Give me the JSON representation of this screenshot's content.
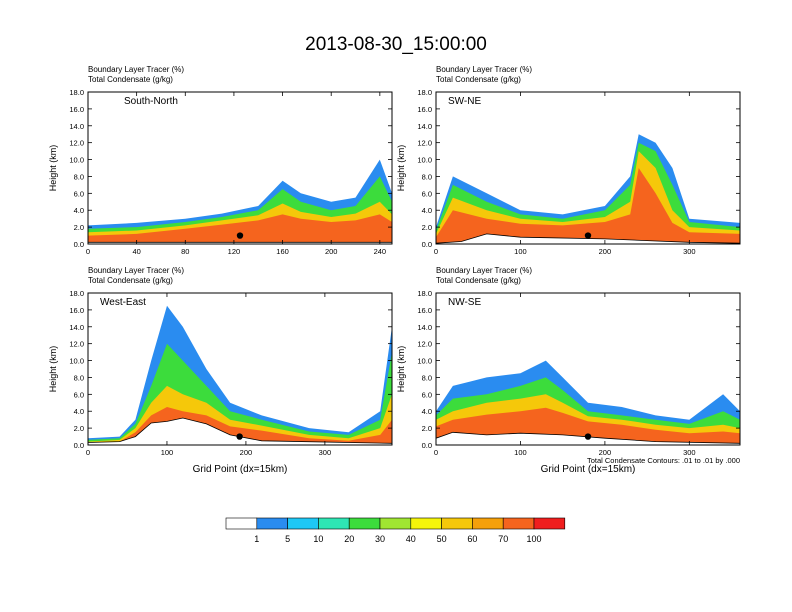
{
  "figure": {
    "title": "2013-08-30_15:00:00",
    "contour_note": "Total Condensate Contours: .01 to .01 by .000"
  },
  "colors": {
    "levels": [
      "#ffffff",
      "#2a8cf0",
      "#1ec8f5",
      "#2ee6b4",
      "#3cdc3c",
      "#a0e632",
      "#f5f50a",
      "#f5c80a",
      "#f5a00a",
      "#f5641e",
      "#f01e1e"
    ],
    "contour": "#000000",
    "marker": "#000000"
  },
  "colorbar": {
    "labels": [
      "1",
      "5",
      "10",
      "20",
      "30",
      "40",
      "50",
      "60",
      "70",
      "100"
    ]
  },
  "chart_data": [
    {
      "type": "heatmap",
      "panel": "South-North",
      "header_lines": [
        "Boundary Layer Tracer   (%)",
        "Total Condensate   (g/kg)"
      ],
      "ylabel": "Height (km)",
      "xlabel": "",
      "xlim": [
        0,
        250
      ],
      "ylim": [
        0,
        18
      ],
      "xticks": [
        "0",
        "40",
        "80",
        "120",
        "160",
        "200",
        "240"
      ],
      "yticks": [
        "0.0",
        "2.0",
        "4.0",
        "6.0",
        "8.0",
        "10.0",
        "12.0",
        "14.0",
        "16.0",
        "18.0"
      ],
      "series": [
        {
          "level_pct": 1,
          "top_km": [
            [
              0,
              2.2
            ],
            [
              40,
              2.5
            ],
            [
              80,
              3.0
            ],
            [
              110,
              3.6
            ],
            [
              140,
              4.5
            ],
            [
              160,
              7.5
            ],
            [
              175,
              6.0
            ],
            [
              200,
              5.0
            ],
            [
              220,
              5.5
            ],
            [
              240,
              10.0
            ],
            [
              250,
              6.0
            ]
          ]
        },
        {
          "level_pct": 20,
          "top_km": [
            [
              0,
              1.8
            ],
            [
              40,
              2.0
            ],
            [
              80,
              2.6
            ],
            [
              110,
              3.2
            ],
            [
              140,
              4.0
            ],
            [
              160,
              6.5
            ],
            [
              175,
              5.0
            ],
            [
              200,
              4.0
            ],
            [
              220,
              4.5
            ],
            [
              240,
              8.0
            ],
            [
              250,
              5.0
            ]
          ]
        },
        {
          "level_pct": 50,
          "top_km": [
            [
              0,
              1.4
            ],
            [
              40,
              1.6
            ],
            [
              80,
              2.2
            ],
            [
              110,
              2.8
            ],
            [
              140,
              3.4
            ],
            [
              160,
              4.8
            ],
            [
              175,
              3.8
            ],
            [
              200,
              3.2
            ],
            [
              220,
              3.6
            ],
            [
              240,
              5.0
            ],
            [
              250,
              3.5
            ]
          ]
        },
        {
          "level_pct": 70,
          "top_km": [
            [
              0,
              1.0
            ],
            [
              40,
              1.2
            ],
            [
              80,
              1.8
            ],
            [
              110,
              2.3
            ],
            [
              140,
              2.8
            ],
            [
              160,
              3.5
            ],
            [
              175,
              3.0
            ],
            [
              200,
              2.6
            ],
            [
              220,
              2.8
            ],
            [
              240,
              3.5
            ],
            [
              250,
              2.6
            ]
          ]
        }
      ],
      "terrain_km": [
        [
          0,
          0.2
        ],
        [
          250,
          0.2
        ]
      ],
      "marker": [
        125,
        1.0
      ]
    },
    {
      "type": "heatmap",
      "panel": "SW-NE",
      "header_lines": [
        "Boundary Layer Tracer   (%)",
        "Total Condensate   (g/kg)"
      ],
      "ylabel": "Height (km)",
      "xlabel": "",
      "xlim": [
        0,
        360
      ],
      "ylim": [
        0,
        18
      ],
      "xticks": [
        "0",
        "100",
        "200",
        "300"
      ],
      "yticks": [
        "0.0",
        "2.0",
        "4.0",
        "6.0",
        "8.0",
        "10.0",
        "12.0",
        "14.0",
        "16.0",
        "18.0"
      ],
      "series": [
        {
          "level_pct": 1,
          "top_km": [
            [
              0,
              2.0
            ],
            [
              20,
              8.0
            ],
            [
              60,
              6.0
            ],
            [
              100,
              4.0
            ],
            [
              150,
              3.5
            ],
            [
              200,
              4.5
            ],
            [
              230,
              8.0
            ],
            [
              240,
              13.0
            ],
            [
              260,
              12.0
            ],
            [
              280,
              9.0
            ],
            [
              300,
              3.0
            ],
            [
              360,
              2.5
            ]
          ]
        },
        {
          "level_pct": 20,
          "top_km": [
            [
              0,
              1.6
            ],
            [
              20,
              7.0
            ],
            [
              60,
              5.0
            ],
            [
              100,
              3.5
            ],
            [
              150,
              3.0
            ],
            [
              200,
              4.0
            ],
            [
              230,
              7.0
            ],
            [
              240,
              12.0
            ],
            [
              260,
              11.0
            ],
            [
              280,
              7.0
            ],
            [
              300,
              2.6
            ],
            [
              360,
              2.0
            ]
          ]
        },
        {
          "level_pct": 50,
          "top_km": [
            [
              0,
              1.2
            ],
            [
              20,
              5.5
            ],
            [
              60,
              4.0
            ],
            [
              100,
              3.0
            ],
            [
              150,
              2.6
            ],
            [
              200,
              3.2
            ],
            [
              230,
              5.0
            ],
            [
              240,
              11.0
            ],
            [
              260,
              9.0
            ],
            [
              280,
              4.0
            ],
            [
              300,
              2.0
            ],
            [
              360,
              1.6
            ]
          ]
        },
        {
          "level_pct": 70,
          "top_km": [
            [
              0,
              0.8
            ],
            [
              20,
              4.0
            ],
            [
              60,
              3.0
            ],
            [
              100,
              2.4
            ],
            [
              150,
              2.2
            ],
            [
              200,
              2.6
            ],
            [
              230,
              3.5
            ],
            [
              240,
              9.0
            ],
            [
              260,
              6.0
            ],
            [
              280,
              2.5
            ],
            [
              300,
              1.4
            ],
            [
              360,
              1.2
            ]
          ]
        }
      ],
      "terrain_km": [
        [
          0,
          0.1
        ],
        [
          30,
          0.3
        ],
        [
          60,
          1.2
        ],
        [
          100,
          0.8
        ],
        [
          200,
          0.6
        ],
        [
          250,
          0.4
        ],
        [
          300,
          0.2
        ],
        [
          360,
          0.1
        ]
      ],
      "marker": [
        180,
        1.0
      ]
    },
    {
      "type": "heatmap",
      "panel": "West-East",
      "header_lines": [
        "Boundary Layer Tracer   (%)",
        "Total Condensate   (g/kg)"
      ],
      "ylabel": "Height (km)",
      "xlabel": "Grid Point (dx=15km)",
      "xlim": [
        0,
        385
      ],
      "ylim": [
        0,
        18
      ],
      "xticks": [
        "0",
        "100",
        "200",
        "300"
      ],
      "yticks": [
        "0.0",
        "2.0",
        "4.0",
        "6.0",
        "8.0",
        "10.0",
        "12.0",
        "14.0",
        "16.0",
        "18.0"
      ],
      "series": [
        {
          "level_pct": 1,
          "top_km": [
            [
              0,
              0.8
            ],
            [
              40,
              1.0
            ],
            [
              60,
              3.0
            ],
            [
              80,
              10.0
            ],
            [
              100,
              16.5
            ],
            [
              120,
              14.0
            ],
            [
              150,
              9.0
            ],
            [
              180,
              5.0
            ],
            [
              220,
              3.5
            ],
            [
              280,
              2.0
            ],
            [
              330,
              1.5
            ],
            [
              370,
              4.0
            ],
            [
              385,
              14.0
            ]
          ]
        },
        {
          "level_pct": 20,
          "top_km": [
            [
              0,
              0.6
            ],
            [
              40,
              0.8
            ],
            [
              60,
              2.5
            ],
            [
              80,
              7.0
            ],
            [
              100,
              12.0
            ],
            [
              120,
              10.0
            ],
            [
              150,
              7.0
            ],
            [
              180,
              4.0
            ],
            [
              220,
              3.0
            ],
            [
              280,
              1.6
            ],
            [
              330,
              1.2
            ],
            [
              370,
              3.0
            ],
            [
              385,
              11.0
            ]
          ]
        },
        {
          "level_pct": 50,
          "top_km": [
            [
              0,
              0.4
            ],
            [
              40,
              0.6
            ],
            [
              60,
              2.0
            ],
            [
              80,
              5.0
            ],
            [
              100,
              7.0
            ],
            [
              120,
              6.0
            ],
            [
              150,
              5.0
            ],
            [
              180,
              3.0
            ],
            [
              220,
              2.3
            ],
            [
              280,
              1.2
            ],
            [
              330,
              0.8
            ],
            [
              370,
              2.0
            ],
            [
              385,
              6.0
            ]
          ]
        },
        {
          "level_pct": 70,
          "top_km": [
            [
              0,
              0.2
            ],
            [
              40,
              0.4
            ],
            [
              60,
              1.5
            ],
            [
              80,
              3.5
            ],
            [
              100,
              4.5
            ],
            [
              120,
              4.0
            ],
            [
              150,
              3.5
            ],
            [
              180,
              2.2
            ],
            [
              220,
              1.7
            ],
            [
              280,
              0.8
            ],
            [
              330,
              0.5
            ],
            [
              370,
              1.2
            ],
            [
              385,
              3.0
            ]
          ]
        }
      ],
      "terrain_km": [
        [
          0,
          0.3
        ],
        [
          40,
          0.4
        ],
        [
          60,
          1.0
        ],
        [
          80,
          2.6
        ],
        [
          100,
          2.8
        ],
        [
          120,
          3.2
        ],
        [
          150,
          2.5
        ],
        [
          180,
          1.2
        ],
        [
          220,
          0.5
        ],
        [
          385,
          0.2
        ]
      ],
      "marker": [
        192,
        1.0
      ]
    },
    {
      "type": "heatmap",
      "panel": "NW-SE",
      "header_lines": [
        "Boundary Layer Tracer   (%)",
        "Total Condensate   (g/kg)"
      ],
      "ylabel": "Height (km)",
      "xlabel": "Grid Point (dx=15km)",
      "xlim": [
        0,
        360
      ],
      "ylim": [
        0,
        18
      ],
      "xticks": [
        "0",
        "100",
        "200",
        "300"
      ],
      "yticks": [
        "0.0",
        "2.0",
        "4.0",
        "6.0",
        "8.0",
        "10.0",
        "12.0",
        "14.0",
        "16.0",
        "18.0"
      ],
      "series": [
        {
          "level_pct": 1,
          "top_km": [
            [
              0,
              4.0
            ],
            [
              20,
              7.0
            ],
            [
              60,
              8.0
            ],
            [
              100,
              8.5
            ],
            [
              130,
              10.0
            ],
            [
              150,
              8.0
            ],
            [
              180,
              5.0
            ],
            [
              220,
              4.5
            ],
            [
              260,
              3.5
            ],
            [
              300,
              3.0
            ],
            [
              340,
              6.0
            ],
            [
              360,
              4.0
            ]
          ]
        },
        {
          "level_pct": 20,
          "top_km": [
            [
              0,
              3.5
            ],
            [
              20,
              5.5
            ],
            [
              60,
              6.0
            ],
            [
              100,
              7.0
            ],
            [
              130,
              8.0
            ],
            [
              150,
              6.5
            ],
            [
              180,
              4.0
            ],
            [
              220,
              3.5
            ],
            [
              260,
              3.0
            ],
            [
              300,
              2.5
            ],
            [
              340,
              4.0
            ],
            [
              360,
              3.0
            ]
          ]
        },
        {
          "level_pct": 50,
          "top_km": [
            [
              0,
              3.0
            ],
            [
              20,
              4.0
            ],
            [
              60,
              5.0
            ],
            [
              100,
              5.5
            ],
            [
              130,
              6.0
            ],
            [
              150,
              5.0
            ],
            [
              180,
              3.4
            ],
            [
              220,
              3.0
            ],
            [
              260,
              2.4
            ],
            [
              300,
              2.0
            ],
            [
              340,
              2.4
            ],
            [
              360,
              2.0
            ]
          ]
        },
        {
          "level_pct": 70,
          "top_km": [
            [
              0,
              2.2
            ],
            [
              20,
              3.0
            ],
            [
              60,
              3.6
            ],
            [
              100,
              4.0
            ],
            [
              130,
              4.4
            ],
            [
              150,
              3.8
            ],
            [
              180,
              2.8
            ],
            [
              220,
              2.4
            ],
            [
              260,
              1.8
            ],
            [
              300,
              1.4
            ],
            [
              340,
              1.6
            ],
            [
              360,
              1.4
            ]
          ]
        }
      ],
      "terrain_km": [
        [
          0,
          0.8
        ],
        [
          20,
          1.5
        ],
        [
          60,
          1.2
        ],
        [
          100,
          1.4
        ],
        [
          150,
          1.2
        ],
        [
          200,
          0.8
        ],
        [
          260,
          0.4
        ],
        [
          360,
          0.2
        ]
      ],
      "marker": [
        180,
        1.0
      ]
    }
  ]
}
